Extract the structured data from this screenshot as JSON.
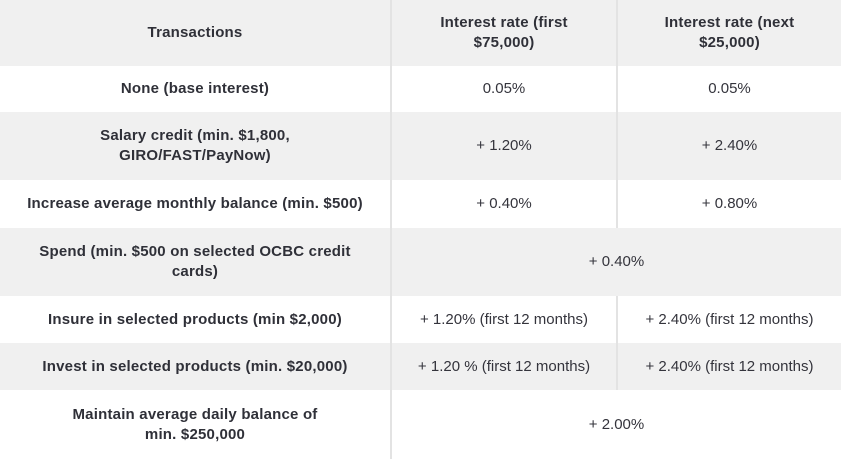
{
  "theme": {
    "alt_row_bg": "#f0f0f0",
    "row_bg": "#ffffff",
    "divider_color": "#e3e3e3",
    "text_color": "#2f3038"
  },
  "table": {
    "columns": [
      {
        "label": "Transactions"
      },
      {
        "label": "Interest rate (first\n$75,000)"
      },
      {
        "label": "Interest rate (next\n$25,000)"
      }
    ],
    "rows": [
      {
        "transaction": "None (base interest)",
        "rate_first": "0.05%",
        "rate_next": "0.05%"
      },
      {
        "transaction": "Salary credit (min. $1,800,\nGIRO/FAST/PayNow)",
        "rate_first": "+ 1.20%",
        "rate_next": "+ 2.40%"
      },
      {
        "transaction": "Increase average monthly balance (min. $500)",
        "rate_first": "+ 0.40%",
        "rate_next": "+ 0.80%"
      },
      {
        "transaction": "Spend (min. $500 on selected OCBC credit\ncards)",
        "rate_combined": "+ 0.40%"
      },
      {
        "transaction": "Insure in selected products (min $2,000)",
        "rate_first": "+ 1.20% (first 12 months)",
        "rate_next": "+ 2.40% (first 12 months)"
      },
      {
        "transaction": "Invest in selected products (min. $20,000)",
        "rate_first": "+ 1.20 % (first 12 months)",
        "rate_next": "+ 2.40% (first 12 months)"
      },
      {
        "transaction": "Maintain average daily balance of\nmin. $250,000",
        "rate_combined": "+ 2.00%"
      }
    ]
  }
}
